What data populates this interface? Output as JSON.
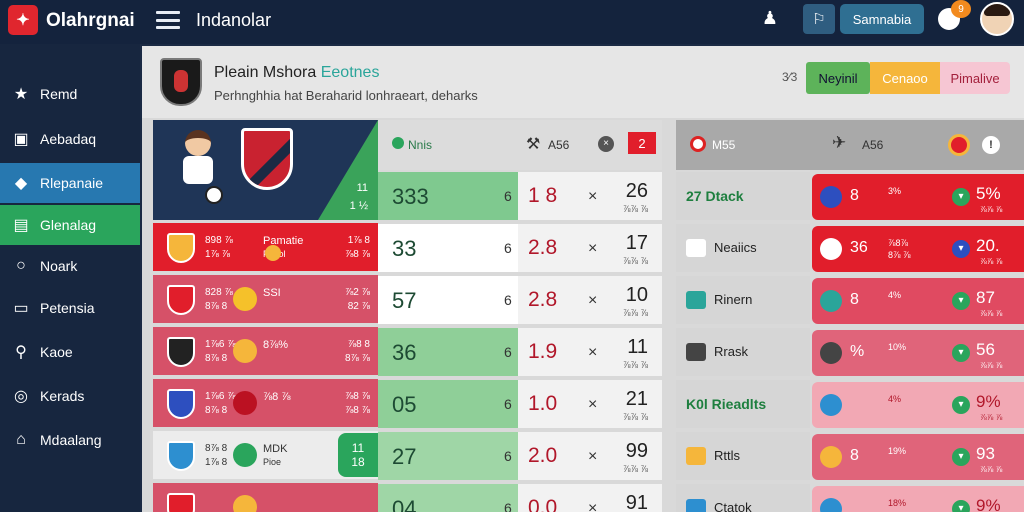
{
  "app": {
    "brand": "Olahrgnai",
    "logo_glyph": "✦",
    "section_title": "Indanolar"
  },
  "topbar": {
    "user_glyph": "♟",
    "square_btn_glyph": "⚐",
    "main_btn_label": "Samnabia",
    "notif_count": "9"
  },
  "sidebar": {
    "items": [
      {
        "label": "Remd",
        "icon": "★",
        "icon_name": "star-icon"
      },
      {
        "label": "Aebadaq",
        "icon": "▣",
        "icon_name": "briefcase-icon"
      },
      {
        "label": "Rlepanaie",
        "icon": "◆",
        "icon_name": "diamond-icon"
      },
      {
        "label": "Glenalag",
        "icon": "▤",
        "icon_name": "inbox-icon"
      },
      {
        "label": "Noark",
        "icon": "○",
        "icon_name": "chat-icon"
      },
      {
        "label": "Petensia",
        "icon": "▭",
        "icon_name": "monitor-icon"
      },
      {
        "label": "Kaoe",
        "icon": "⚲",
        "icon_name": "search-icon"
      },
      {
        "label": "Kerads",
        "icon": "◎",
        "icon_name": "bell-icon"
      },
      {
        "label": "Mdaalang",
        "icon": "⌂",
        "icon_name": "bag-icon"
      }
    ]
  },
  "header": {
    "title_main": "Pleain Mshora",
    "title_accent": "Eeotnes",
    "subtitle": "Perhnghhia hat Beraharid lonhraeart, deharks",
    "code": "3⁄3",
    "btn_green": "Neyinil",
    "btn_orange": "Cenaoo",
    "btn_pink": "Pimalive"
  },
  "hero": {
    "v1": "11",
    "v2": "1 ½"
  },
  "left_rows": [
    {
      "t1": "898 ⅞",
      "t2": "1⅞ ⅞",
      "name": "Pamatie",
      "sub": "Pasol",
      "r1": "1⅞ 8",
      "r2": "⅞8 ⅞",
      "style": "red"
    },
    {
      "t1": "828 ⅞",
      "t2": "8⅞ 8",
      "name": "SSI",
      "sub": "",
      "r1": "⅞2 ⅞",
      "r2": "82 ⅞",
      "style": "pink"
    },
    {
      "t1": "1⅞6 ⅞",
      "t2": "8⅞ 8",
      "name": "8⅞%",
      "sub": "",
      "r1": "⅞8 8",
      "r2": "8⅞ ⅞",
      "style": "pink"
    },
    {
      "t1": "1⅞6 ⅞",
      "t2": "8⅞ 8",
      "name": "⅞8 ⅞",
      "sub": "",
      "r1": "⅞8 ⅞",
      "r2": "⅞8 ⅞",
      "style": "pink"
    },
    {
      "t1": "8⅞ 8",
      "t2": "1⅞ 8",
      "name": "MDK",
      "sub": "Pioe",
      "r1": "11",
      "r2": "18",
      "style": "white"
    }
  ],
  "mid_head": {
    "label": "Nnis",
    "sym": "⚒",
    "ash": "A56",
    "x": "×",
    "red": "2"
  },
  "mid_rows": [
    {
      "score": "333",
      "six": "6",
      "odds": "1 8",
      "cross": "×",
      "n1": "26",
      "n2": "⅞⅞ ⅞",
      "a_color": "#7fc98f"
    },
    {
      "score": "33",
      "six": "6",
      "odds": "2.8",
      "cross": "×",
      "n1": "17",
      "n2": "⅞⅞ ⅞",
      "a_color": "#ffffff"
    },
    {
      "score": "57",
      "six": "6",
      "odds": "2.8",
      "cross": "×",
      "n1": "10",
      "n2": "⅞⅞ ⅞",
      "a_color": "#ffffff"
    },
    {
      "score": "36",
      "six": "6",
      "odds": "1.9",
      "cross": "×",
      "n1": "11",
      "n2": "⅞⅞ ⅞",
      "a_color": "#8fcf98"
    },
    {
      "score": "05",
      "six": "6",
      "odds": "1.0",
      "cross": "×",
      "n1": "21",
      "n2": "⅞⅞ ⅞",
      "a_color": "#8fcf98"
    },
    {
      "score": "27",
      "six": "6",
      "odds": "2.0",
      "cross": "×",
      "n1": "99",
      "n2": "⅞⅞ ⅞",
      "a_color": "#9fd6a6"
    },
    {
      "score": "04",
      "six": "6",
      "odds": "0.0",
      "cross": "×",
      "n1": "91",
      "n2": "",
      "a_color": "#9fd6a6"
    }
  ],
  "right_head": {
    "label": "M55",
    "sym": "✈",
    "ash": "A56",
    "info": "!"
  },
  "right_rows": [
    {
      "name": "27 Dtack",
      "name_green": true,
      "val": "8",
      "sub1": "3%",
      "sub2": "",
      "pct": "5%",
      "foot": "⅞⅞ ⅞",
      "bg": "#e11e2b",
      "crest": "#2d4fbf",
      "dot": "#2aa55c"
    },
    {
      "name": "Neaiics",
      "name_green": false,
      "val": "36",
      "sub1": "⅞8⅞",
      "sub2": "8⅞ ⅞",
      "pct": "20.",
      "foot": "⅞⅞ ⅞",
      "bg": "#e11e2b",
      "crest": "#ffffff",
      "dot": "#2d4fbf"
    },
    {
      "name": "Rinern",
      "name_green": false,
      "val": "8",
      "sub1": "4%",
      "sub2": "",
      "pct": "87",
      "foot": "⅞⅞ ⅞",
      "bg": "#e04a61",
      "crest": "#2aa59a",
      "dot": "#2aa55c"
    },
    {
      "name": "Rrask",
      "name_green": false,
      "val": "%",
      "sub1": "10%",
      "sub2": "",
      "pct": "56",
      "foot": "⅞⅞ ⅞",
      "bg": "#e0647a",
      "crest": "#444444",
      "dot": "#2aa55c"
    },
    {
      "name": "K0l Rieadlts",
      "name_green": true,
      "val": "",
      "sub1": "4%",
      "sub2": "",
      "pct": "9%",
      "foot": "⅞⅞ ⅞",
      "bg": "#f2a8b4",
      "crest": "#2d8fd0",
      "dot": "#2aa55c"
    },
    {
      "name": "Rttls",
      "name_green": false,
      "val": "8",
      "sub1": "19%",
      "sub2": "",
      "pct": "93",
      "foot": "⅞⅞ ⅞",
      "bg": "#e0647a",
      "crest": "#f5b63b",
      "dot": "#2aa55c"
    },
    {
      "name": "Ctatok",
      "name_green": false,
      "val": "",
      "sub1": "18%",
      "sub2": "",
      "pct": "9%",
      "foot": "",
      "bg": "#f2a8b4",
      "crest": "#2d8fd0",
      "dot": "#2aa55c"
    }
  ],
  "colors": {
    "topbar": "#14233d",
    "sidebar": "#17263f",
    "accent_blue": "#2778b0",
    "accent_green": "#2aa55c",
    "accent_red": "#e11e2b"
  }
}
